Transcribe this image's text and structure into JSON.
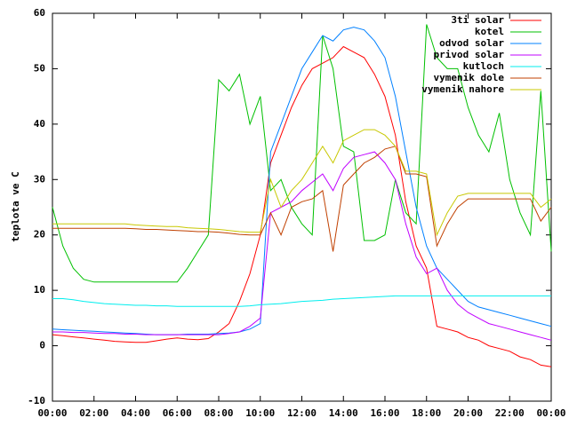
{
  "chart_data": {
    "type": "line",
    "y_label": "teplota ve C",
    "x": [
      0,
      0.5,
      1,
      1.5,
      2,
      2.5,
      3,
      3.5,
      4,
      4.5,
      5,
      5.5,
      6,
      6.5,
      7,
      7.5,
      8,
      8.5,
      9,
      9.5,
      10,
      10.5,
      11,
      11.5,
      12,
      12.5,
      13,
      13.5,
      14,
      14.5,
      15,
      15.5,
      16,
      16.5,
      17,
      17.5,
      18,
      18.5,
      19,
      19.5,
      20,
      20.5,
      21,
      21.5,
      22,
      22.5,
      23,
      23.5,
      24
    ],
    "xlim": [
      0,
      24
    ],
    "xticks": [
      {
        "value": 0,
        "label": "00:00"
      },
      {
        "value": 2,
        "label": "02:00"
      },
      {
        "value": 4,
        "label": "04:00"
      },
      {
        "value": 6,
        "label": "06:00"
      },
      {
        "value": 8,
        "label": "08:00"
      },
      {
        "value": 10,
        "label": "10:00"
      },
      {
        "value": 12,
        "label": "12:00"
      },
      {
        "value": 14,
        "label": "14:00"
      },
      {
        "value": 16,
        "label": "16:00"
      },
      {
        "value": 18,
        "label": "18:00"
      },
      {
        "value": 20,
        "label": "20:00"
      },
      {
        "value": 22,
        "label": "22:00"
      },
      {
        "value": 24,
        "label": "00:00"
      }
    ],
    "ylim": [
      -10,
      60
    ],
    "yticks": [
      -10,
      0,
      10,
      20,
      30,
      40,
      50,
      60
    ],
    "legend": "top-right",
    "series": [
      {
        "name": "3ti solar",
        "color": "#ff0000",
        "values": [
          2,
          1.8,
          1.6,
          1.4,
          1.2,
          1,
          0.8,
          0.7,
          0.6,
          0.6,
          0.9,
          1.2,
          1.4,
          1.2,
          1.1,
          1.3,
          2.5,
          4,
          8,
          13,
          20,
          33,
          38,
          43,
          47,
          50,
          51,
          52,
          54,
          53,
          52,
          49,
          45,
          38,
          26,
          18,
          14,
          3.5,
          3,
          2.5,
          1.5,
          1,
          0,
          -0.5,
          -1,
          -2,
          -2.5,
          -3.5,
          -3.8
        ]
      },
      {
        "name": "kotel",
        "color": "#00c000",
        "values": [
          25,
          18,
          14,
          12,
          11.5,
          11.5,
          11.5,
          11.5,
          11.5,
          11.5,
          11.5,
          11.5,
          11.5,
          14,
          17,
          20,
          48,
          46,
          49,
          40,
          45,
          28,
          30,
          25,
          22,
          20,
          56,
          50,
          36,
          35,
          19,
          19,
          20,
          30,
          24,
          22,
          58,
          52,
          50,
          50,
          43,
          38,
          35,
          42,
          30,
          24,
          20,
          46,
          17
        ]
      },
      {
        "name": "odvod solar",
        "color": "#0080ff",
        "values": [
          3,
          2.9,
          2.8,
          2.7,
          2.6,
          2.5,
          2.4,
          2.3,
          2.2,
          2.1,
          2,
          2,
          2,
          2.1,
          2.1,
          2.1,
          2.2,
          2.3,
          2.5,
          3,
          4,
          35,
          40,
          45,
          50,
          53,
          56,
          55,
          57,
          57.5,
          57,
          55,
          52,
          45,
          35,
          25,
          18,
          14,
          12,
          10,
          8,
          7,
          6.5,
          6,
          5.5,
          5,
          4.5,
          4,
          3.5
        ]
      },
      {
        "name": "privod solar",
        "color": "#c000ff",
        "values": [
          2.5,
          2.5,
          2.4,
          2.4,
          2.3,
          2.2,
          2.2,
          2.1,
          2.1,
          2,
          2,
          2,
          2,
          2,
          2,
          2,
          2,
          2.2,
          2.5,
          3.5,
          5,
          24,
          25,
          26,
          28,
          29.5,
          31,
          28,
          32,
          34,
          34.5,
          35,
          33,
          30,
          22,
          16,
          13,
          14,
          10,
          7.5,
          6,
          5,
          4,
          3.5,
          3,
          2.5,
          2,
          1.5,
          1
        ]
      },
      {
        "name": "kutloch",
        "color": "#00eeee",
        "values": [
          8.5,
          8.5,
          8.3,
          8,
          7.8,
          7.6,
          7.5,
          7.4,
          7.3,
          7.3,
          7.2,
          7.2,
          7.1,
          7.1,
          7.1,
          7.1,
          7.1,
          7.1,
          7.1,
          7.2,
          7.4,
          7.5,
          7.6,
          7.8,
          8,
          8.1,
          8.2,
          8.4,
          8.5,
          8.6,
          8.7,
          8.8,
          8.9,
          9,
          9,
          9,
          9,
          9,
          9,
          9,
          9,
          9,
          9,
          9,
          9,
          9,
          9,
          9,
          9
        ]
      },
      {
        "name": "vymenik dole",
        "color": "#c04000",
        "values": [
          21.2,
          21.2,
          21.2,
          21.2,
          21.2,
          21.2,
          21.2,
          21.2,
          21.1,
          21,
          21,
          20.9,
          20.8,
          20.7,
          20.6,
          20.6,
          20.5,
          20.3,
          20.1,
          20,
          20,
          24,
          20,
          25,
          26,
          26.5,
          28,
          17,
          29,
          31,
          33,
          34,
          35.5,
          36,
          31,
          31,
          30.5,
          18,
          22,
          25,
          26.5,
          26.5,
          26.5,
          26.5,
          26.5,
          26.5,
          26.5,
          22.5,
          25
        ]
      },
      {
        "name": "vymenik nahore",
        "color": "#c8c800",
        "values": [
          22,
          22,
          22,
          22,
          22,
          22,
          22,
          22,
          21.8,
          21.7,
          21.6,
          21.5,
          21.5,
          21.3,
          21.2,
          21.1,
          21,
          20.8,
          20.6,
          20.5,
          20.5,
          30,
          25,
          28,
          30,
          33,
          36,
          33,
          37,
          38,
          39,
          39,
          38,
          36,
          31.5,
          31.5,
          31,
          20,
          24,
          27,
          27.5,
          27.5,
          27.5,
          27.5,
          27.5,
          27.5,
          27.5,
          25,
          26.5
        ]
      }
    ]
  }
}
